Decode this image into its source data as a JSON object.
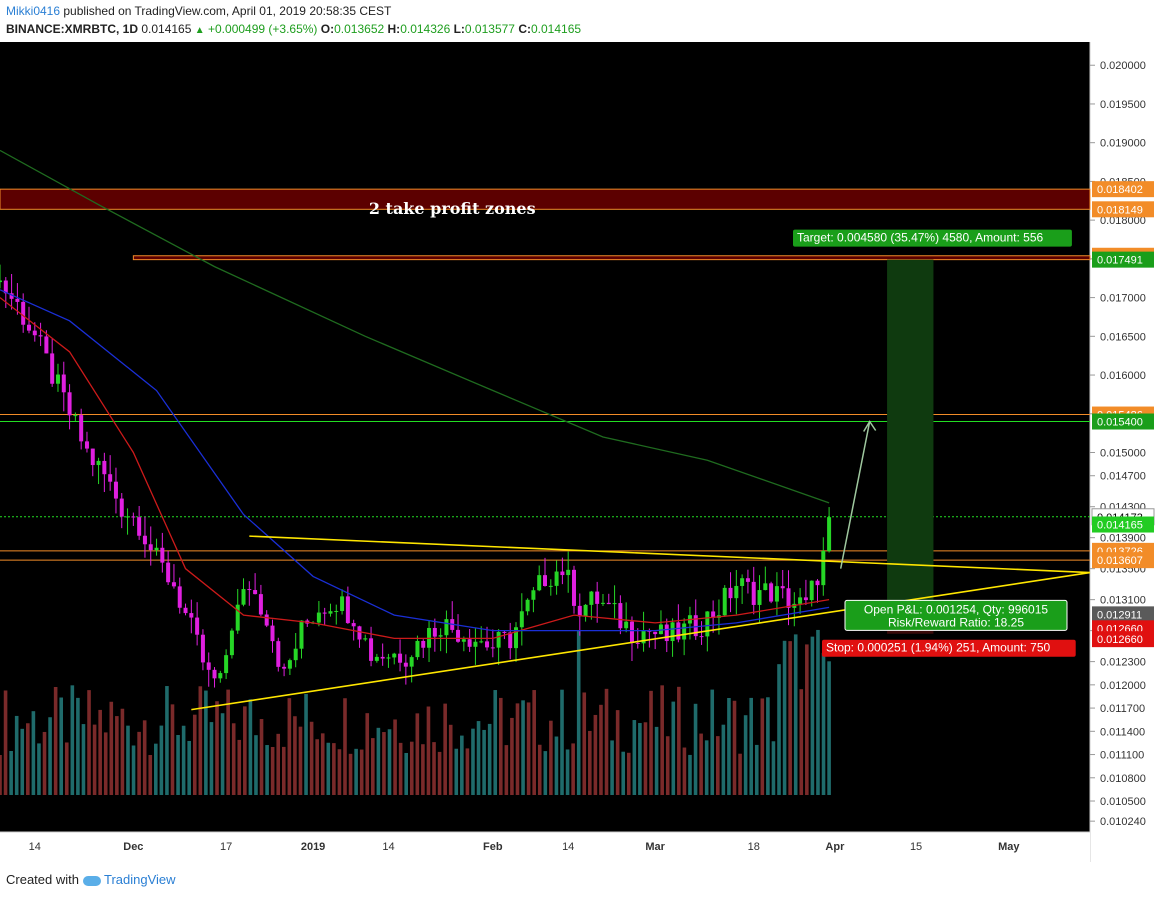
{
  "header": {
    "user": "Mikki0416",
    "published": "published on TradingView.com, April 01, 2019 20:58:35 CEST",
    "symbol": "BINANCE:XMRBTC, 1D",
    "last": "0.014165",
    "change": "+0.000499 (+3.65%)",
    "o_label": "O:",
    "o": "0.013652",
    "h_label": "H:",
    "h": "0.014326",
    "l_label": "L:",
    "l": "0.013577",
    "c_label": "C:",
    "c": "0.014165"
  },
  "footer": {
    "created": "Created with",
    "brand": "TradingView"
  },
  "colors": {
    "background": "#000000",
    "up": "#26d626",
    "down": "#e020e0",
    "vol_up": "#1f6b6b",
    "vol_down": "#7a2a2a",
    "ma_red": "#cc1a1a",
    "ma_blue": "#1a2fd6",
    "ma_green": "#1f6b1f",
    "trend": "#ffe600",
    "target": "#1a7a1a",
    "stop": "#e01010",
    "resistance": "#f28c28",
    "support": "#22dd22"
  },
  "chart_data": {
    "type": "candlestick",
    "title": "",
    "price_range": [
      0.0101,
      0.0203
    ],
    "y_ticks": [
      "0.020000",
      "0.019500",
      "0.019000",
      "0.018500",
      "0.018000",
      "0.017500",
      "0.017000",
      "0.016500",
      "0.016000",
      "0.015500",
      "0.015000",
      "0.014700",
      "0.014300",
      "0.013900",
      "0.013500",
      "0.013100",
      "0.012700",
      "0.012300",
      "0.012000",
      "0.011700",
      "0.011400",
      "0.011100",
      "0.010800",
      "0.010500",
      "0.010240"
    ],
    "x_ticks": [
      "14",
      "Dec",
      "17",
      "2019",
      "14",
      "Feb",
      "14",
      "Mar",
      "18",
      "Apr",
      "15",
      "May"
    ],
    "x_tick_dates": [
      "2018-11-14",
      "2018-12-01",
      "2018-12-17",
      "2019-01-01",
      "2019-01-14",
      "2019-02-01",
      "2019-02-14",
      "2019-03-01",
      "2019-03-18",
      "2019-04-01",
      "2019-04-15",
      "2019-05-01"
    ],
    "date_range": [
      "2018-11-08",
      "2019-05-15"
    ],
    "close_path": [
      [
        "2018-11-08",
        0.0172
      ],
      [
        "2018-11-11",
        0.0169
      ],
      [
        "2018-11-14",
        0.0165
      ],
      [
        "2018-11-17",
        0.016
      ],
      [
        "2018-11-20",
        0.0155
      ],
      [
        "2018-11-23",
        0.015
      ],
      [
        "2018-11-26",
        0.0147
      ],
      [
        "2018-11-29",
        0.0143
      ],
      [
        "2018-12-02",
        0.0141
      ],
      [
        "2018-12-05",
        0.0136
      ],
      [
        "2018-12-08",
        0.0133
      ],
      [
        "2018-12-11",
        0.0127
      ],
      [
        "2018-12-14",
        0.0121
      ],
      [
        "2018-12-16",
        0.012
      ],
      [
        "2018-12-18",
        0.0128
      ],
      [
        "2018-12-21",
        0.0133
      ],
      [
        "2018-12-24",
        0.0129
      ],
      [
        "2018-12-27",
        0.0121
      ],
      [
        "2018-12-30",
        0.0127
      ],
      [
        "2019-01-02",
        0.013
      ],
      [
        "2019-01-05",
        0.0131
      ],
      [
        "2019-01-08",
        0.0129
      ],
      [
        "2019-01-11",
        0.0124
      ],
      [
        "2019-01-14",
        0.0124
      ],
      [
        "2019-01-17",
        0.0124
      ],
      [
        "2019-01-20",
        0.0126
      ],
      [
        "2019-01-23",
        0.0128
      ],
      [
        "2019-01-26",
        0.0127
      ],
      [
        "2019-01-29",
        0.0126
      ],
      [
        "2019-02-01",
        0.0125
      ],
      [
        "2019-02-04",
        0.0126
      ],
      [
        "2019-02-07",
        0.013
      ],
      [
        "2019-02-10",
        0.0134
      ],
      [
        "2019-02-13",
        0.0135
      ],
      [
        "2019-02-16",
        0.013
      ],
      [
        "2019-02-19",
        0.0131
      ],
      [
        "2019-02-22",
        0.0129
      ],
      [
        "2019-02-25",
        0.0127
      ],
      [
        "2019-02-28",
        0.0127
      ],
      [
        "2019-03-03",
        0.0126
      ],
      [
        "2019-03-06",
        0.0127
      ],
      [
        "2019-03-09",
        0.0128
      ],
      [
        "2019-03-12",
        0.013
      ],
      [
        "2019-03-15",
        0.0133
      ],
      [
        "2019-03-18",
        0.0132
      ],
      [
        "2019-03-21",
        0.0132
      ],
      [
        "2019-03-24",
        0.0131
      ],
      [
        "2019-03-27",
        0.013
      ],
      [
        "2019-03-30",
        0.01365
      ],
      [
        "2019-03-31",
        0.014165
      ]
    ],
    "moving_averages": [
      {
        "color": "#cc1a1a",
        "points": [
          [
            "2018-11-08",
            0.017
          ],
          [
            "2018-11-20",
            0.0163
          ],
          [
            "2018-12-01",
            0.015
          ],
          [
            "2018-12-10",
            0.0135
          ],
          [
            "2018-12-20",
            0.0129
          ],
          [
            "2019-01-01",
            0.0128
          ],
          [
            "2019-01-15",
            0.0126
          ],
          [
            "2019-02-01",
            0.0126
          ],
          [
            "2019-02-15",
            0.0129
          ],
          [
            "2019-03-01",
            0.0128
          ],
          [
            "2019-03-15",
            0.0129
          ],
          [
            "2019-03-31",
            0.0131
          ]
        ]
      },
      {
        "color": "#1a2fd6",
        "points": [
          [
            "2018-11-08",
            0.0171
          ],
          [
            "2018-11-20",
            0.0167
          ],
          [
            "2018-12-05",
            0.0158
          ],
          [
            "2018-12-20",
            0.0142
          ],
          [
            "2019-01-01",
            0.0134
          ],
          [
            "2019-01-15",
            0.0129
          ],
          [
            "2019-02-01",
            0.0127
          ],
          [
            "2019-02-15",
            0.0127
          ],
          [
            "2019-03-01",
            0.0127
          ],
          [
            "2019-03-15",
            0.0128
          ],
          [
            "2019-03-31",
            0.013
          ]
        ]
      },
      {
        "color": "#1f6b1f",
        "points": [
          [
            "2018-11-08",
            0.0189
          ],
          [
            "2018-11-25",
            0.0182
          ],
          [
            "2018-12-15",
            0.0174
          ],
          [
            "2019-01-10",
            0.0165
          ],
          [
            "2019-02-01",
            0.0158
          ],
          [
            "2019-02-20",
            0.0152
          ],
          [
            "2019-03-10",
            0.0149
          ],
          [
            "2019-03-31",
            0.01435
          ]
        ]
      }
    ],
    "trendlines": [
      {
        "from": [
          "2018-12-11",
          0.01168
        ],
        "to": [
          "2019-05-15",
          0.01345
        ]
      },
      {
        "from": [
          "2018-12-21",
          0.01392
        ],
        "to": [
          "2019-05-15",
          0.01345
        ]
      }
    ],
    "zones": [
      {
        "from": 0.01814,
        "to": 0.0184,
        "start": "2018-11-08",
        "end": "2019-05-15"
      },
      {
        "from": 0.01749,
        "to": 0.01754,
        "start": "2018-12-01",
        "end": "2019-05-15"
      }
    ],
    "zone_label": "2 take profit zones",
    "hlines": [
      {
        "price": 0.01549,
        "color": "#f28c28"
      },
      {
        "price": 0.0154,
        "color": "#22dd22"
      },
      {
        "price": 0.01417,
        "color": "#22dd22"
      },
      {
        "price": 0.01373,
        "color": "#f28c28"
      },
      {
        "price": 0.01361,
        "color": "#f28c28"
      }
    ],
    "position": {
      "entry": 0.01291,
      "target": 0.01749,
      "stop": 0.01266,
      "start": "2019-04-10",
      "end": "2019-04-18",
      "target_label": "Target: 0.004580 (35.47%) 4580, Amount: 556",
      "stop_label": "Stop: 0.000251 (1.94%) 251, Amount: 750",
      "pnl_label": "Open P&L: 0.001254, Qty: 996015",
      "rr_label": "Risk/Reward Ratio: 18.25"
    },
    "arrow": {
      "from": [
        "2019-04-02",
        0.0135
      ],
      "to": [
        "2019-04-07",
        0.0154
      ]
    },
    "price_labels": [
      {
        "text": "0.018402",
        "price": 0.0184,
        "color": "#f28c28"
      },
      {
        "text": "0.018149",
        "price": 0.01814,
        "color": "#f28c28"
      },
      {
        "text": "0.017539",
        "price": 0.01754,
        "color": "#f28c28"
      },
      {
        "text": "0.017491",
        "price": 0.01749,
        "color": "#1a9e1a"
      },
      {
        "text": "0.015486",
        "price": 0.01549,
        "color": "#f28c28"
      },
      {
        "text": "0.015400",
        "price": 0.0154,
        "color": "#1a9e1a"
      },
      {
        "text": "0.014173",
        "price": 0.01417,
        "color": "#ffffff"
      },
      {
        "text": "0.014165",
        "price": 0.01407,
        "color": "#22cc22"
      },
      {
        "text": "0.013726",
        "price": 0.01373,
        "color": "#f28c28"
      },
      {
        "text": "0.013607",
        "price": 0.01361,
        "color": "#f28c28"
      },
      {
        "text": "0.012911",
        "price": 0.01291,
        "color": "#5a5a5a"
      },
      {
        "text": "0.012660",
        "price": 0.01273,
        "color": "#e01010"
      },
      {
        "text": "0.012660",
        "price": 0.01259,
        "color": "#e01010"
      }
    ]
  }
}
